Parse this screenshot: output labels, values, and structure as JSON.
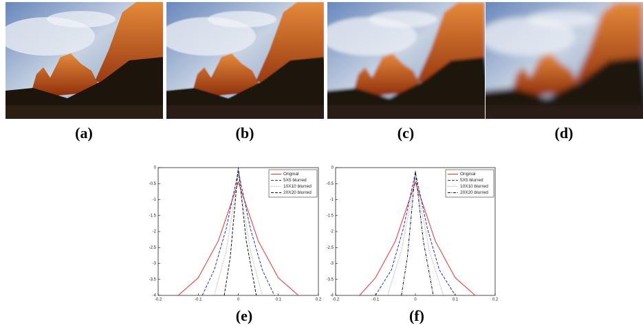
{
  "figure": {
    "captions": [
      "(a)",
      "(b)",
      "(c)",
      "(d)",
      "(e)",
      "(f)"
    ]
  },
  "chart_data": [
    {
      "type": "line",
      "xlim": [
        -0.2,
        0.2
      ],
      "ylim": [
        -4,
        0
      ],
      "xticks": [
        -0.2,
        -0.1,
        0,
        0.1,
        0.2
      ],
      "yticks": [
        0,
        -0.5,
        -1,
        -1.5,
        -2,
        -2.5,
        -3,
        -3.5,
        -4
      ],
      "grid": false,
      "legend": "upper right",
      "series": [
        {
          "name": "Original",
          "color": "#e8322e",
          "dash": "solid",
          "x": [
            -0.15,
            -0.1,
            -0.05,
            0,
            0.05,
            0.1,
            0.15
          ],
          "values": [
            -4,
            -3.45,
            -2.3,
            -0.45,
            -2.3,
            -3.45,
            -4
          ]
        },
        {
          "name": "5X5 blurred",
          "color": "#1f2fd0",
          "dash": "dashed",
          "x": [
            -0.09,
            -0.06,
            -0.03,
            0,
            0.03,
            0.06,
            0.09
          ],
          "values": [
            -4,
            -3.2,
            -1.9,
            -0.1,
            -1.9,
            -3.2,
            -4
          ]
        },
        {
          "name": "10X10 blurred",
          "color": "#9a9a9a",
          "dash": "dotted",
          "x": [
            -0.06,
            -0.03,
            0,
            0.03,
            0.06
          ],
          "values": [
            -4,
            -2.6,
            -0.2,
            -2.6,
            -4
          ]
        },
        {
          "name": "20X20 blurred",
          "color": "#111111",
          "dash": "dashed",
          "x": [
            -0.035,
            -0.02,
            0,
            0.02,
            0.045
          ],
          "values": [
            -4,
            -2.8,
            0,
            -2.3,
            -4
          ]
        }
      ]
    },
    {
      "type": "line",
      "xlim": [
        -0.2,
        0.2
      ],
      "ylim": [
        -4,
        0
      ],
      "xticks": [
        -0.2,
        -0.1,
        0,
        0.1,
        0.2
      ],
      "yticks": [
        0,
        -0.5,
        -1,
        -1.5,
        -2,
        -2.5,
        -3,
        -3.5,
        -4
      ],
      "grid": false,
      "legend": "upper right",
      "series": [
        {
          "name": "Original",
          "color": "#e8322e",
          "dash": "solid",
          "x": [
            -0.14,
            -0.1,
            -0.05,
            0,
            0.05,
            0.1,
            0.15
          ],
          "values": [
            -4,
            -3.45,
            -2.3,
            -0.45,
            -2.3,
            -3.45,
            -4
          ]
        },
        {
          "name": "5X5 blurred",
          "color": "#1f2fd0",
          "dash": "dashed",
          "x": [
            -0.1,
            -0.06,
            -0.03,
            0,
            0.03,
            0.06,
            0.1
          ],
          "values": [
            -4,
            -3.2,
            -1.9,
            -0.15,
            -1.9,
            -3.2,
            -4
          ]
        },
        {
          "name": "10X10 blurred",
          "color": "#9a9a9a",
          "dash": "dotted",
          "x": [
            -0.07,
            -0.035,
            0,
            0.035,
            0.07
          ],
          "values": [
            -4,
            -2.6,
            -0.3,
            -2.6,
            -4
          ]
        },
        {
          "name": "20X20 blurred",
          "color": "#111111",
          "dash": "dashdot",
          "x": [
            -0.035,
            -0.02,
            0,
            0.02,
            0.045
          ],
          "values": [
            -4,
            -2.8,
            -0.1,
            -2.3,
            -4
          ]
        }
      ]
    }
  ]
}
